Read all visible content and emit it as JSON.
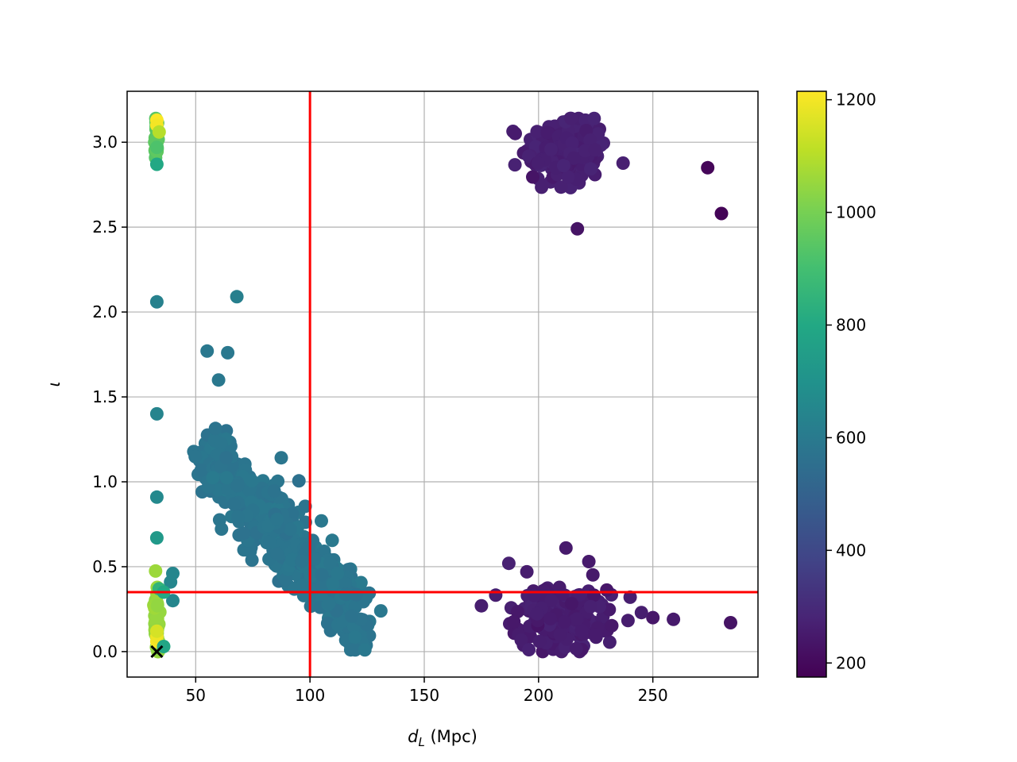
{
  "chart_data": {
    "type": "scatter",
    "title": "",
    "xlabel": "d_L (Mpc)",
    "xlabel_main": "d",
    "xlabel_sub": "L",
    "xlabel_rest": " (Mpc)",
    "ylabel": "ι",
    "xlim": [
      20,
      296
    ],
    "ylim": [
      -0.15,
      3.3
    ],
    "xticks": [
      50,
      100,
      150,
      200,
      250
    ],
    "yticks": [
      0.0,
      0.5,
      1.0,
      1.5,
      2.0,
      2.5,
      3.0
    ],
    "xtick_labels": [
      "50",
      "100",
      "150",
      "200",
      "250"
    ],
    "ytick_labels": [
      "0.0",
      "0.5",
      "1.0",
      "1.5",
      "2.0",
      "2.5",
      "3.0"
    ],
    "grid": true,
    "reference_lines": {
      "vertical_x": 100,
      "horizontal_y": 0.35,
      "color": "#ff0000"
    },
    "true_value_marker": {
      "x": 33,
      "y": 0.0,
      "marker": "x",
      "color": "#000000"
    },
    "colorbar": {
      "colormap": "viridis",
      "range": [
        175,
        1215
      ],
      "ticks": [
        200,
        400,
        600,
        800,
        1000,
        1200
      ],
      "tick_labels": [
        "200",
        "400",
        "600",
        "800",
        "1000",
        "1200"
      ]
    },
    "clusters": [
      {
        "name": "",
        "x_mean": 212,
        "x_sd": 9,
        "y_mean": 2.95,
        "y_sd": 0.1,
        "count": 220,
        "color_value": 265
      },
      {
        "name": "",
        "x_mean": 210,
        "x_sd": 10,
        "y_mean": 0.2,
        "y_sd": 0.09,
        "count": 220,
        "color_value": 258
      },
      {
        "name": "",
        "band_x_start": 55,
        "band_x_end": 122,
        "band_y_start": 1.15,
        "band_y_end": 0.2,
        "count": 650,
        "color_value": 580
      },
      {
        "name": "",
        "x_mean": 33,
        "x_sd": 0.4,
        "y_mean": 3.0,
        "y_sd": 0.07,
        "count": 30,
        "color_value": 950
      },
      {
        "name": "",
        "x_mean": 33,
        "x_sd": 0.5,
        "y_mean": 0.2,
        "y_sd": 0.1,
        "count": 60,
        "color_value": 1050
      }
    ],
    "points": [
      {
        "x": 274,
        "y": 2.85,
        "c": 190
      },
      {
        "x": 280,
        "y": 2.58,
        "c": 185
      },
      {
        "x": 217,
        "y": 2.49,
        "c": 230
      },
      {
        "x": 284,
        "y": 0.17,
        "c": 230
      },
      {
        "x": 259,
        "y": 0.19,
        "c": 250
      },
      {
        "x": 250,
        "y": 0.2,
        "c": 240
      },
      {
        "x": 245,
        "y": 0.23,
        "c": 260
      },
      {
        "x": 175,
        "y": 0.27,
        "c": 260
      },
      {
        "x": 187,
        "y": 0.52,
        "c": 270
      },
      {
        "x": 212,
        "y": 0.61,
        "c": 250
      },
      {
        "x": 222,
        "y": 0.53,
        "c": 250
      },
      {
        "x": 68,
        "y": 2.09,
        "c": 620
      },
      {
        "x": 55,
        "y": 1.77,
        "c": 590
      },
      {
        "x": 64,
        "y": 1.76,
        "c": 590
      },
      {
        "x": 60,
        "y": 1.6,
        "c": 590
      },
      {
        "x": 105,
        "y": 0.77,
        "c": 590
      },
      {
        "x": 112,
        "y": 0.46,
        "c": 590
      },
      {
        "x": 131,
        "y": 0.24,
        "c": 590
      },
      {
        "x": 124,
        "y": 0.01,
        "c": 590
      },
      {
        "x": 33,
        "y": 2.06,
        "c": 630
      },
      {
        "x": 33,
        "y": 1.4,
        "c": 640
      },
      {
        "x": 33,
        "y": 0.91,
        "c": 660
      },
      {
        "x": 33,
        "y": 0.67,
        "c": 730
      },
      {
        "x": 33,
        "y": 2.87,
        "c": 800
      },
      {
        "x": 33,
        "y": 3.13,
        "c": 1210
      },
      {
        "x": 33,
        "y": 3.1,
        "c": 1200
      },
      {
        "x": 34,
        "y": 3.06,
        "c": 1100
      },
      {
        "x": 33,
        "y": 2.97,
        "c": 920
      },
      {
        "x": 33,
        "y": 0.06,
        "c": 1200
      },
      {
        "x": 33,
        "y": 0.09,
        "c": 1190
      },
      {
        "x": 33,
        "y": 0.12,
        "c": 1150
      },
      {
        "x": 36,
        "y": 0.03,
        "c": 790
      },
      {
        "x": 39,
        "y": 0.41,
        "c": 650
      },
      {
        "x": 40,
        "y": 0.46,
        "c": 650
      },
      {
        "x": 40,
        "y": 0.3,
        "c": 650
      },
      {
        "x": 34,
        "y": 0.37,
        "c": 850
      },
      {
        "x": 36,
        "y": 0.35,
        "c": 800
      }
    ]
  }
}
